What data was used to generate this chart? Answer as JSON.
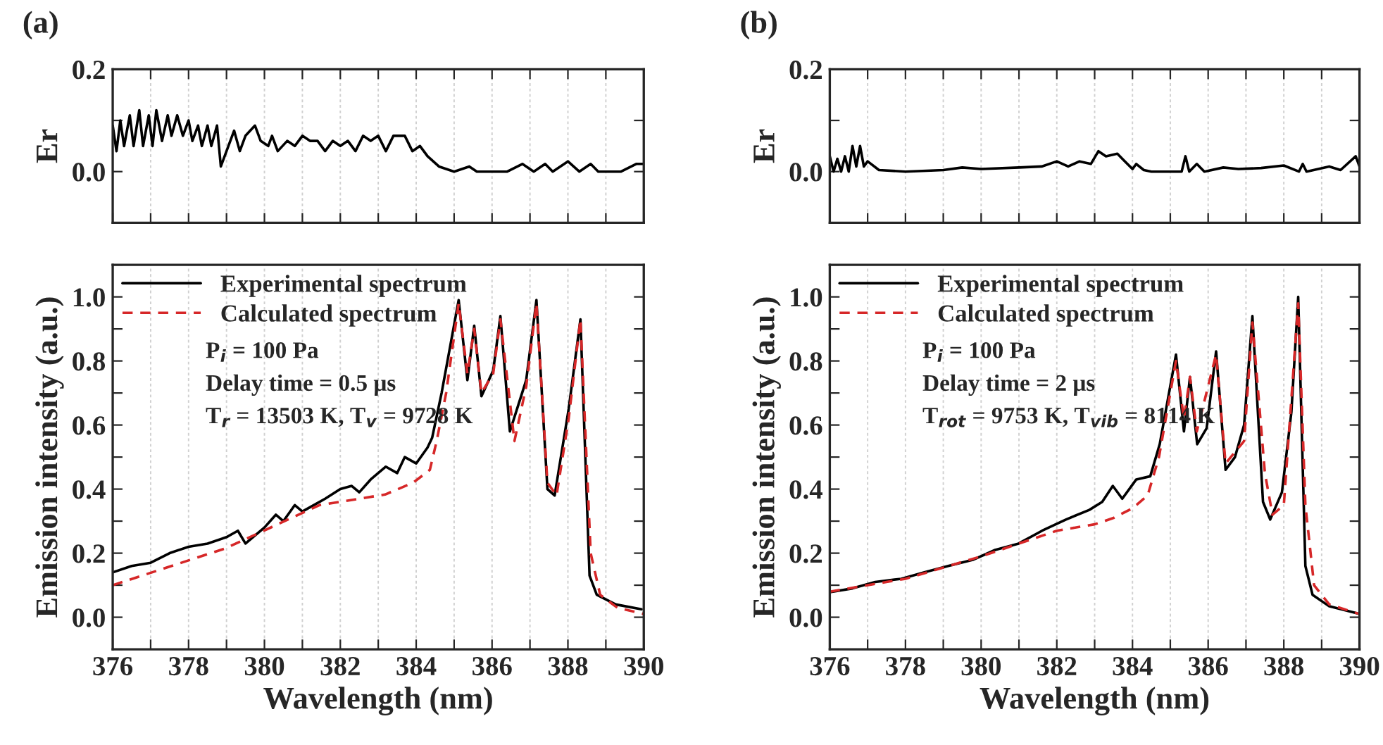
{
  "chart_data": [
    {
      "type": "line",
      "title": "(a)",
      "ylabel": "Er",
      "xlim": [
        376,
        390
      ],
      "xticks": [
        376,
        {
          "value": 377,
          "label": null
        },
        378,
        {
          "value": 379,
          "label": null
        },
        380,
        {
          "value": 381,
          "label": null
        },
        382,
        {
          "value": 383,
          "label": null
        },
        384,
        {
          "value": 385,
          "label": null
        },
        386,
        {
          "value": 387,
          "label": null
        },
        388,
        {
          "value": 389,
          "label": null
        },
        390
      ],
      "ylim": [
        -0.1,
        0.2
      ],
      "yticks": [
        {
          "value": -0.1,
          "label": null
        },
        {
          "value": 0,
          "label": "0.0"
        },
        {
          "value": 0.1,
          "label": null
        },
        {
          "value": 0.2,
          "label": "0.2"
        }
      ],
      "tick_labels": "y",
      "grid": "x",
      "legend": false,
      "series": [
        {
          "color": "#000000",
          "line_style": "solid",
          "x": [
            376.0,
            376.1,
            376.2,
            376.3,
            376.45,
            376.55,
            376.7,
            376.8,
            376.95,
            377.05,
            377.15,
            377.3,
            377.45,
            377.55,
            377.7,
            377.85,
            378.0,
            378.1,
            378.25,
            378.35,
            378.5,
            378.6,
            378.75,
            378.85,
            379.0,
            379.2,
            379.35,
            379.5,
            379.75,
            379.9,
            380.1,
            380.2,
            380.35,
            380.6,
            380.8,
            381.0,
            381.2,
            381.4,
            381.6,
            381.8,
            382.0,
            382.2,
            382.4,
            382.6,
            382.8,
            383.0,
            383.2,
            383.4,
            383.7,
            383.9,
            384.1,
            384.3,
            384.6,
            385.0,
            385.4,
            385.6,
            386.4,
            386.8,
            387.1,
            387.4,
            387.6,
            388.0,
            388.3,
            388.6,
            388.8,
            389.4,
            389.8,
            390.0
          ],
          "values": [
            0.09,
            0.04,
            0.1,
            0.05,
            0.11,
            0.05,
            0.12,
            0.05,
            0.11,
            0.05,
            0.12,
            0.06,
            0.11,
            0.07,
            0.11,
            0.07,
            0.1,
            0.06,
            0.09,
            0.05,
            0.09,
            0.05,
            0.09,
            0.01,
            0.04,
            0.08,
            0.04,
            0.07,
            0.09,
            0.06,
            0.05,
            0.07,
            0.04,
            0.06,
            0.05,
            0.07,
            0.06,
            0.06,
            0.04,
            0.06,
            0.05,
            0.06,
            0.04,
            0.07,
            0.06,
            0.07,
            0.04,
            0.07,
            0.07,
            0.04,
            0.05,
            0.03,
            0.01,
            0.0,
            0.01,
            0.0,
            0.0,
            0.015,
            0.0,
            0.015,
            0.0,
            0.02,
            0.0,
            0.015,
            0.0,
            0.0,
            0.015,
            0.015
          ]
        }
      ]
    },
    {
      "type": "line",
      "title": "(b)",
      "ylabel": "Er",
      "xlim": [
        376,
        390
      ],
      "xticks": [
        376,
        {
          "value": 377,
          "label": null
        },
        378,
        {
          "value": 379,
          "label": null
        },
        380,
        {
          "value": 381,
          "label": null
        },
        382,
        {
          "value": 383,
          "label": null
        },
        384,
        {
          "value": 385,
          "label": null
        },
        386,
        {
          "value": 387,
          "label": null
        },
        388,
        {
          "value": 389,
          "label": null
        },
        390
      ],
      "ylim": [
        -0.1,
        0.2
      ],
      "yticks": [
        {
          "value": -0.1,
          "label": null
        },
        {
          "value": 0,
          "label": "0.0"
        },
        {
          "value": 0.1,
          "label": null
        },
        {
          "value": 0.2,
          "label": "0.2"
        }
      ],
      "tick_labels": "y",
      "grid": "x",
      "legend": false,
      "series": [
        {
          "color": "#000000",
          "line_style": "solid",
          "x": [
            376.0,
            376.1,
            376.2,
            376.3,
            376.4,
            376.5,
            376.6,
            376.7,
            376.8,
            376.9,
            377.0,
            377.3,
            378.0,
            379.0,
            379.5,
            380.0,
            381.0,
            381.6,
            382.0,
            382.3,
            382.6,
            382.9,
            383.1,
            383.3,
            383.6,
            383.8,
            384.0,
            384.1,
            384.3,
            384.5,
            385.3,
            385.4,
            385.5,
            385.7,
            385.9,
            386.4,
            386.8,
            387.4,
            388.0,
            388.4,
            388.5,
            388.6,
            389.2,
            389.5,
            389.9,
            390.0
          ],
          "values": [
            0.03,
            0.0,
            0.025,
            0.0,
            0.03,
            0.0,
            0.05,
            0.01,
            0.05,
            0.01,
            0.02,
            0.003,
            0.0,
            0.003,
            0.008,
            0.005,
            0.008,
            0.01,
            0.02,
            0.01,
            0.02,
            0.015,
            0.04,
            0.03,
            0.035,
            0.02,
            0.005,
            0.015,
            0.003,
            0.0,
            0.0,
            0.03,
            0.0,
            0.015,
            0.0,
            0.008,
            0.005,
            0.007,
            0.012,
            0.0,
            0.015,
            0.0,
            0.01,
            0.003,
            0.03,
            0.01
          ]
        }
      ]
    },
    {
      "type": "line",
      "xlabel": "Wavelength (nm)",
      "ylabel": "Emission intensity (a.u.)",
      "xlim": [
        376,
        390
      ],
      "xticks": [
        376,
        {
          "value": 377,
          "label": null
        },
        378,
        {
          "value": 379,
          "label": null
        },
        380,
        {
          "value": 381,
          "label": null
        },
        382,
        {
          "value": 383,
          "label": null
        },
        384,
        {
          "value": 385,
          "label": null
        },
        386,
        {
          "value": 387,
          "label": null
        },
        388,
        {
          "value": 389,
          "label": null
        },
        390
      ],
      "ylim": [
        -0.1,
        1.1
      ],
      "yticks": [
        {
          "value": -0.1,
          "label": null
        },
        {
          "value": 0,
          "label": "0.0"
        },
        {
          "value": 0.1,
          "label": null
        },
        {
          "value": 0.2,
          "label": "0.2"
        },
        {
          "value": 0.3,
          "label": null
        },
        {
          "value": 0.4,
          "label": "0.4"
        },
        {
          "value": 0.5,
          "label": null
        },
        {
          "value": 0.6,
          "label": "0.6"
        },
        {
          "value": 0.7,
          "label": null
        },
        {
          "value": 0.8,
          "label": "0.8"
        },
        {
          "value": 0.9,
          "label": null
        },
        {
          "value": 1.0,
          "label": "1.0"
        },
        {
          "value": 1.1,
          "label": null
        }
      ],
      "grid": "x",
      "legend": "top left",
      "annotations": [
        "P$_{i}$ = 100 Pa",
        "Delay time = 0.5 μs",
        "T$_{r}$ = 13503 K, T$_{v}$ = 9728 K"
      ],
      "series": [
        {
          "name": "Experimental spectrum",
          "color": "#000000",
          "line_style": "solid",
          "x": [
            376.0,
            376.5,
            377.0,
            377.5,
            378.0,
            378.5,
            379.0,
            379.3,
            379.5,
            380.0,
            380.3,
            380.5,
            380.8,
            381.0,
            381.3,
            381.6,
            382.0,
            382.3,
            382.5,
            382.8,
            383.2,
            383.5,
            383.7,
            384.0,
            384.3,
            384.42,
            384.67,
            385.12,
            385.35,
            385.53,
            385.72,
            386.03,
            386.22,
            386.47,
            386.9,
            387.17,
            387.46,
            387.65,
            388.02,
            388.33,
            388.57,
            388.76,
            389.26,
            389.94
          ],
          "values": [
            0.14,
            0.16,
            0.17,
            0.2,
            0.22,
            0.23,
            0.25,
            0.27,
            0.23,
            0.28,
            0.32,
            0.3,
            0.35,
            0.33,
            0.35,
            0.37,
            0.4,
            0.41,
            0.39,
            0.43,
            0.47,
            0.45,
            0.5,
            0.48,
            0.53,
            0.56,
            0.7,
            0.99,
            0.74,
            0.91,
            0.69,
            0.77,
            0.94,
            0.58,
            0.74,
            0.99,
            0.4,
            0.38,
            0.65,
            0.93,
            0.13,
            0.07,
            0.04,
            0.025
          ]
        },
        {
          "name": "Calculated spectrum",
          "color": "#d62728",
          "line_style": "dashed",
          "x": [
            376.0,
            378.97,
            381.45,
            382.19,
            383.18,
            383.92,
            384.36,
            384.54,
            384.79,
            385.12,
            385.35,
            385.53,
            385.72,
            386.03,
            386.22,
            386.59,
            386.9,
            387.17,
            387.46,
            387.7,
            388.02,
            388.33,
            388.6,
            388.85,
            389.3,
            390.0
          ],
          "values": [
            0.1,
            0.215,
            0.35,
            0.364,
            0.383,
            0.42,
            0.46,
            0.55,
            0.7,
            0.98,
            0.76,
            0.9,
            0.7,
            0.76,
            0.93,
            0.55,
            0.72,
            0.98,
            0.42,
            0.38,
            0.62,
            0.93,
            0.2,
            0.07,
            0.03,
            0.01
          ]
        }
      ]
    },
    {
      "type": "line",
      "xlabel": "Wavelength (nm)",
      "ylabel": "Emission intensity (a.u.)",
      "xlim": [
        376,
        390
      ],
      "xticks": [
        376,
        {
          "value": 377,
          "label": null
        },
        378,
        {
          "value": 379,
          "label": null
        },
        380,
        {
          "value": 381,
          "label": null
        },
        382,
        {
          "value": 383,
          "label": null
        },
        384,
        {
          "value": 385,
          "label": null
        },
        386,
        {
          "value": 387,
          "label": null
        },
        388,
        {
          "value": 389,
          "label": null
        },
        390
      ],
      "ylim": [
        -0.1,
        1.1
      ],
      "yticks": [
        {
          "value": -0.1,
          "label": null
        },
        {
          "value": 0,
          "label": "0.0"
        },
        {
          "value": 0.1,
          "label": null
        },
        {
          "value": 0.2,
          "label": "0.2"
        },
        {
          "value": 0.3,
          "label": null
        },
        {
          "value": 0.4,
          "label": "0.4"
        },
        {
          "value": 0.5,
          "label": null
        },
        {
          "value": 0.6,
          "label": "0.6"
        },
        {
          "value": 0.7,
          "label": null
        },
        {
          "value": 0.8,
          "label": "0.8"
        },
        {
          "value": 0.9,
          "label": null
        },
        {
          "value": 1.0,
          "label": "1.0"
        },
        {
          "value": 1.1,
          "label": null
        }
      ],
      "grid": "x",
      "legend": "top left",
      "annotations": [
        "P$_{i}$ = 100 Pa",
        "Delay time = 2 μs",
        "T$_{rot}$ = 9753 K, T$_{vib}$ = 8114 K"
      ],
      "series": [
        {
          "name": "Experimental spectrum",
          "color": "#000000",
          "line_style": "solid",
          "x": [
            376.0,
            376.6,
            377.2,
            377.89,
            378.5,
            379.13,
            379.8,
            380.37,
            380.99,
            381.61,
            382.24,
            382.86,
            383.2,
            383.48,
            383.73,
            384.1,
            384.47,
            384.72,
            385.15,
            385.36,
            385.52,
            385.71,
            385.96,
            386.21,
            386.46,
            386.71,
            386.95,
            387.17,
            387.45,
            387.64,
            387.95,
            388.2,
            388.38,
            388.57,
            388.76,
            389.19,
            389.94
          ],
          "values": [
            0.078,
            0.09,
            0.11,
            0.12,
            0.14,
            0.16,
            0.18,
            0.21,
            0.23,
            0.27,
            0.305,
            0.335,
            0.36,
            0.41,
            0.37,
            0.43,
            0.44,
            0.54,
            0.82,
            0.58,
            0.75,
            0.54,
            0.59,
            0.83,
            0.46,
            0.5,
            0.6,
            0.94,
            0.36,
            0.305,
            0.39,
            0.64,
            1.0,
            0.16,
            0.07,
            0.035,
            0.012
          ]
        },
        {
          "name": "Calculated spectrum",
          "color": "#d62728",
          "line_style": "dashed",
          "x": [
            376.0,
            378.0,
            380.0,
            381.0,
            382.0,
            383.0,
            383.5,
            384.0,
            384.4,
            384.7,
            385.15,
            385.36,
            385.52,
            385.7,
            386.21,
            386.46,
            386.95,
            387.17,
            387.5,
            387.7,
            388.0,
            388.38,
            388.57,
            388.8,
            389.2,
            390.0
          ],
          "values": [
            0.08,
            0.12,
            0.19,
            0.23,
            0.27,
            0.29,
            0.31,
            0.34,
            0.38,
            0.5,
            0.8,
            0.62,
            0.75,
            0.58,
            0.82,
            0.48,
            0.55,
            0.92,
            0.45,
            0.32,
            0.35,
            0.98,
            0.35,
            0.1,
            0.04,
            0.01
          ]
        }
      ]
    }
  ]
}
